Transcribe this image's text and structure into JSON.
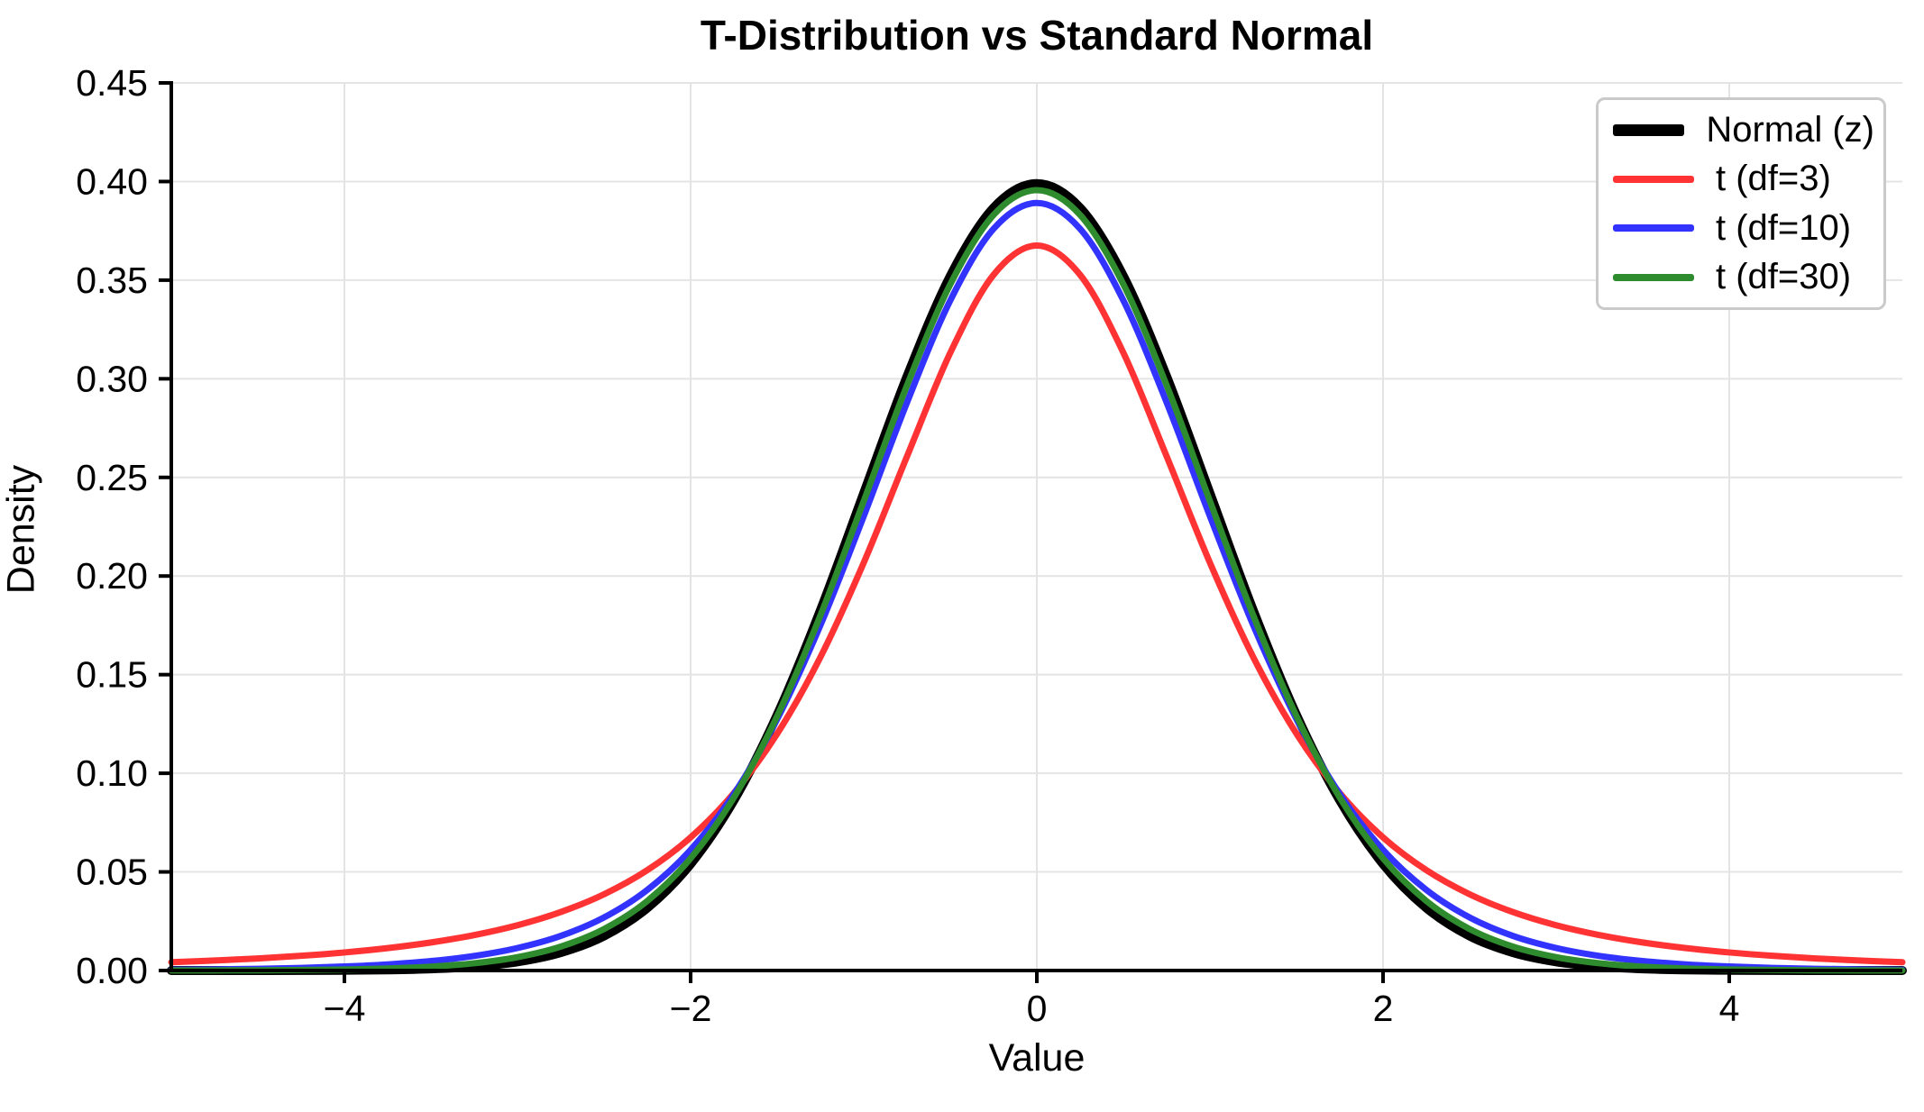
{
  "figure": {
    "title": "T-Distribution vs Standard Normal",
    "xlabel": "Value",
    "ylabel": "Density",
    "background": "#ffffff"
  },
  "chart_data": {
    "type": "line",
    "title": "T-Distribution vs Standard Normal",
    "xlabel": "Value",
    "ylabel": "Density",
    "xlim": [
      -5,
      5
    ],
    "ylim": [
      0,
      0.45
    ],
    "grid": true,
    "grid_color": "#e4e4e4",
    "spine_color": "#000000",
    "legend_position": "upper right",
    "legend_border_color": "#cacaca",
    "x_ticks": {
      "values": [
        -4,
        -2,
        0,
        2,
        4
      ],
      "labels": [
        "−4",
        "−2",
        "0",
        "2",
        "4"
      ]
    },
    "y_ticks": {
      "values": [
        0,
        0.05,
        0.1,
        0.15,
        0.2,
        0.25,
        0.3,
        0.35,
        0.4,
        0.45
      ],
      "labels": [
        "0.00",
        "0.05",
        "0.10",
        "0.15",
        "0.20",
        "0.25",
        "0.30",
        "0.35",
        "0.40",
        "0.45"
      ]
    },
    "x": [
      -5,
      -4.75,
      -4.5,
      -4.25,
      -4,
      -3.75,
      -3.5,
      -3.25,
      -3,
      -2.75,
      -2.5,
      -2.25,
      -2,
      -1.75,
      -1.5,
      -1.25,
      -1,
      -0.75,
      -0.5,
      -0.25,
      0,
      0.25,
      0.5,
      0.75,
      1,
      1.25,
      1.5,
      1.75,
      2,
      2.25,
      2.5,
      2.75,
      3,
      3.25,
      3.5,
      3.75,
      4,
      4.25,
      4.5,
      4.75,
      5
    ],
    "series": [
      {
        "name": "Normal (z)",
        "color": "#000000",
        "linewidth": 10,
        "peak": 0.3989,
        "values": [
          1e-06,
          5e-06,
          1.6e-05,
          4.8e-05,
          0.000134,
          0.000353,
          0.000873,
          0.00203,
          0.004432,
          0.009105,
          0.017528,
          0.03174,
          0.053991,
          0.086277,
          0.129518,
          0.182649,
          0.241971,
          0.301137,
          0.352065,
          0.386668,
          0.398942,
          0.386668,
          0.352065,
          0.301137,
          0.241971,
          0.182649,
          0.129518,
          0.086277,
          0.053991,
          0.03174,
          0.017528,
          0.009105,
          0.004432,
          0.00203,
          0.000873,
          0.000353,
          0.000134,
          4.8e-05,
          1.6e-05,
          5e-06,
          1e-06
        ]
      },
      {
        "name": "t (df=3)",
        "color": "#ff3333",
        "linewidth": 7,
        "peak": 0.3676,
        "values": [
          0.00422,
          0.005062,
          0.006119,
          0.007457,
          0.009163,
          0.011363,
          0.014224,
          0.017984,
          0.022972,
          0.02965,
          0.038661,
          0.05089,
          0.06751,
          0.09001,
          0.12002,
          0.158911,
          0.206748,
          0.260644,
          0.313177,
          0.352691,
          0.367553,
          0.352691,
          0.313177,
          0.260644,
          0.206748,
          0.158911,
          0.12002,
          0.09001,
          0.06751,
          0.05089,
          0.038661,
          0.02965,
          0.022972,
          0.017984,
          0.014224,
          0.011363,
          0.009163,
          0.007457,
          0.006119,
          0.005062,
          0.00422
        ]
      },
      {
        "name": "t (df=10)",
        "color": "#3333ff",
        "linewidth": 7,
        "peak": 0.3891,
        "values": [
          0.000396,
          0.000589,
          0.000883,
          0.001335,
          0.002031,
          0.003106,
          0.004783,
          0.007382,
          0.011413,
          0.01756,
          0.026926,
          0.0409,
          0.06116,
          0.08951,
          0.127441,
          0.175079,
          0.230335,
          0.287973,
          0.339694,
          0.376002,
          0.389108,
          0.376002,
          0.339694,
          0.287973,
          0.230335,
          0.175079,
          0.127441,
          0.08951,
          0.06116,
          0.0409,
          0.026926,
          0.01756,
          0.011413,
          0.007382,
          0.004783,
          0.003106,
          0.002031,
          0.001335,
          0.000883,
          0.000589,
          0.000396
        ]
      },
      {
        "name": "t (df=30)",
        "color": "#2e8b2e",
        "linewidth": 7,
        "peak": 0.3956,
        "values": [
          3.3e-05,
          6.6e-05,
          0.000133,
          0.000266,
          0.000525,
          0.001023,
          0.00196,
          0.003689,
          0.006781,
          0.012145,
          0.021047,
          0.035268,
          0.05686,
          0.08769,
          0.128957,
          0.180067,
          0.237957,
          0.296637,
          0.347868,
          0.383072,
          0.395625,
          0.383072,
          0.347868,
          0.296637,
          0.237957,
          0.180067,
          0.128957,
          0.08769,
          0.05686,
          0.035268,
          0.021047,
          0.012145,
          0.006781,
          0.003689,
          0.00196,
          0.001023,
          0.000525,
          0.000266,
          0.000133,
          6.6e-05,
          3.3e-05
        ]
      }
    ]
  }
}
